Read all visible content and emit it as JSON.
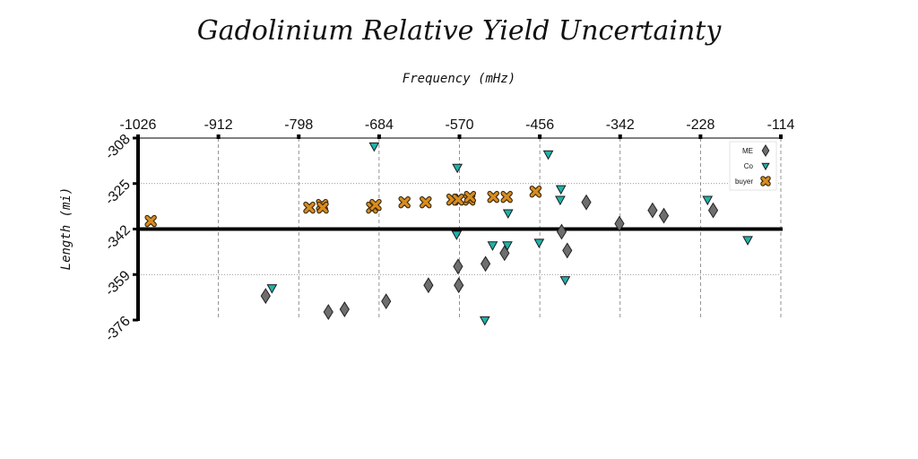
{
  "chart_data": {
    "type": "scatter",
    "title": "Gadolinium Relative Yield Uncertainty",
    "xlabel": "Frequency (mHz)",
    "ylabel": "Length (mi)",
    "xlim": [
      -1026,
      -114
    ],
    "ylim": [
      -376,
      -308
    ],
    "x_ticks": [
      -1026,
      -912,
      -798,
      -684,
      -570,
      -456,
      -342,
      -228,
      -114
    ],
    "x_tick_labels": [
      "-1026",
      "-912",
      "-798",
      "-684",
      "-570",
      "-456",
      "-342",
      "-228",
      "-114"
    ],
    "y_ticks": [
      -308,
      -325,
      -342,
      -359,
      -376
    ],
    "y_tick_labels": [
      "-308",
      "-325",
      "-342",
      "-359",
      "-376"
    ],
    "x_axis_position": "top",
    "grid": true,
    "reference_line_y": -342,
    "legend": {
      "position": "top-right",
      "entries": [
        "ME",
        "Co",
        "buyer"
      ]
    },
    "series": [
      {
        "name": "ME",
        "marker": "diamond",
        "color": "#6e6e6e",
        "points": [
          [
            -845,
            -367
          ],
          [
            -756,
            -373
          ],
          [
            -733,
            -372
          ],
          [
            -674,
            -369
          ],
          [
            -614,
            -363
          ],
          [
            -572,
            -356
          ],
          [
            -571,
            -363
          ],
          [
            -533,
            -355
          ],
          [
            -506,
            -351
          ],
          [
            -425,
            -343
          ],
          [
            -417,
            -350
          ],
          [
            -390,
            -332
          ],
          [
            -343,
            -340
          ],
          [
            -296,
            -335
          ],
          [
            -280,
            -337
          ],
          [
            -210,
            -335
          ]
        ]
      },
      {
        "name": "Co",
        "marker": "triangle-down",
        "color": "#20b2aa",
        "points": [
          [
            -691,
            -311
          ],
          [
            -573,
            -319
          ],
          [
            -444,
            -314
          ],
          [
            -836,
            -364
          ],
          [
            -763,
            -333
          ],
          [
            -574,
            -344
          ],
          [
            -523,
            -348
          ],
          [
            -534,
            -376
          ],
          [
            -502,
            -348
          ],
          [
            -501,
            -336
          ],
          [
            -457,
            -347
          ],
          [
            -427,
            -331
          ],
          [
            -426,
            -327
          ],
          [
            -420,
            -361
          ],
          [
            -218,
            -331
          ],
          [
            -161,
            -346
          ]
        ]
      },
      {
        "name": "buyer",
        "marker": "x",
        "color": "#d98c1f",
        "points": [
          [
            -1008,
            -339
          ],
          [
            -783,
            -334
          ],
          [
            -765,
            -333
          ],
          [
            -764,
            -334
          ],
          [
            -694,
            -334
          ],
          [
            -689,
            -333
          ],
          [
            -648,
            -332
          ],
          [
            -618,
            -332
          ],
          [
            -580,
            -331
          ],
          [
            -572,
            -331
          ],
          [
            -556,
            -331
          ],
          [
            -555,
            -330
          ],
          [
            -522,
            -330
          ],
          [
            -503,
            -330
          ],
          [
            -462,
            -328
          ]
        ]
      }
    ]
  }
}
